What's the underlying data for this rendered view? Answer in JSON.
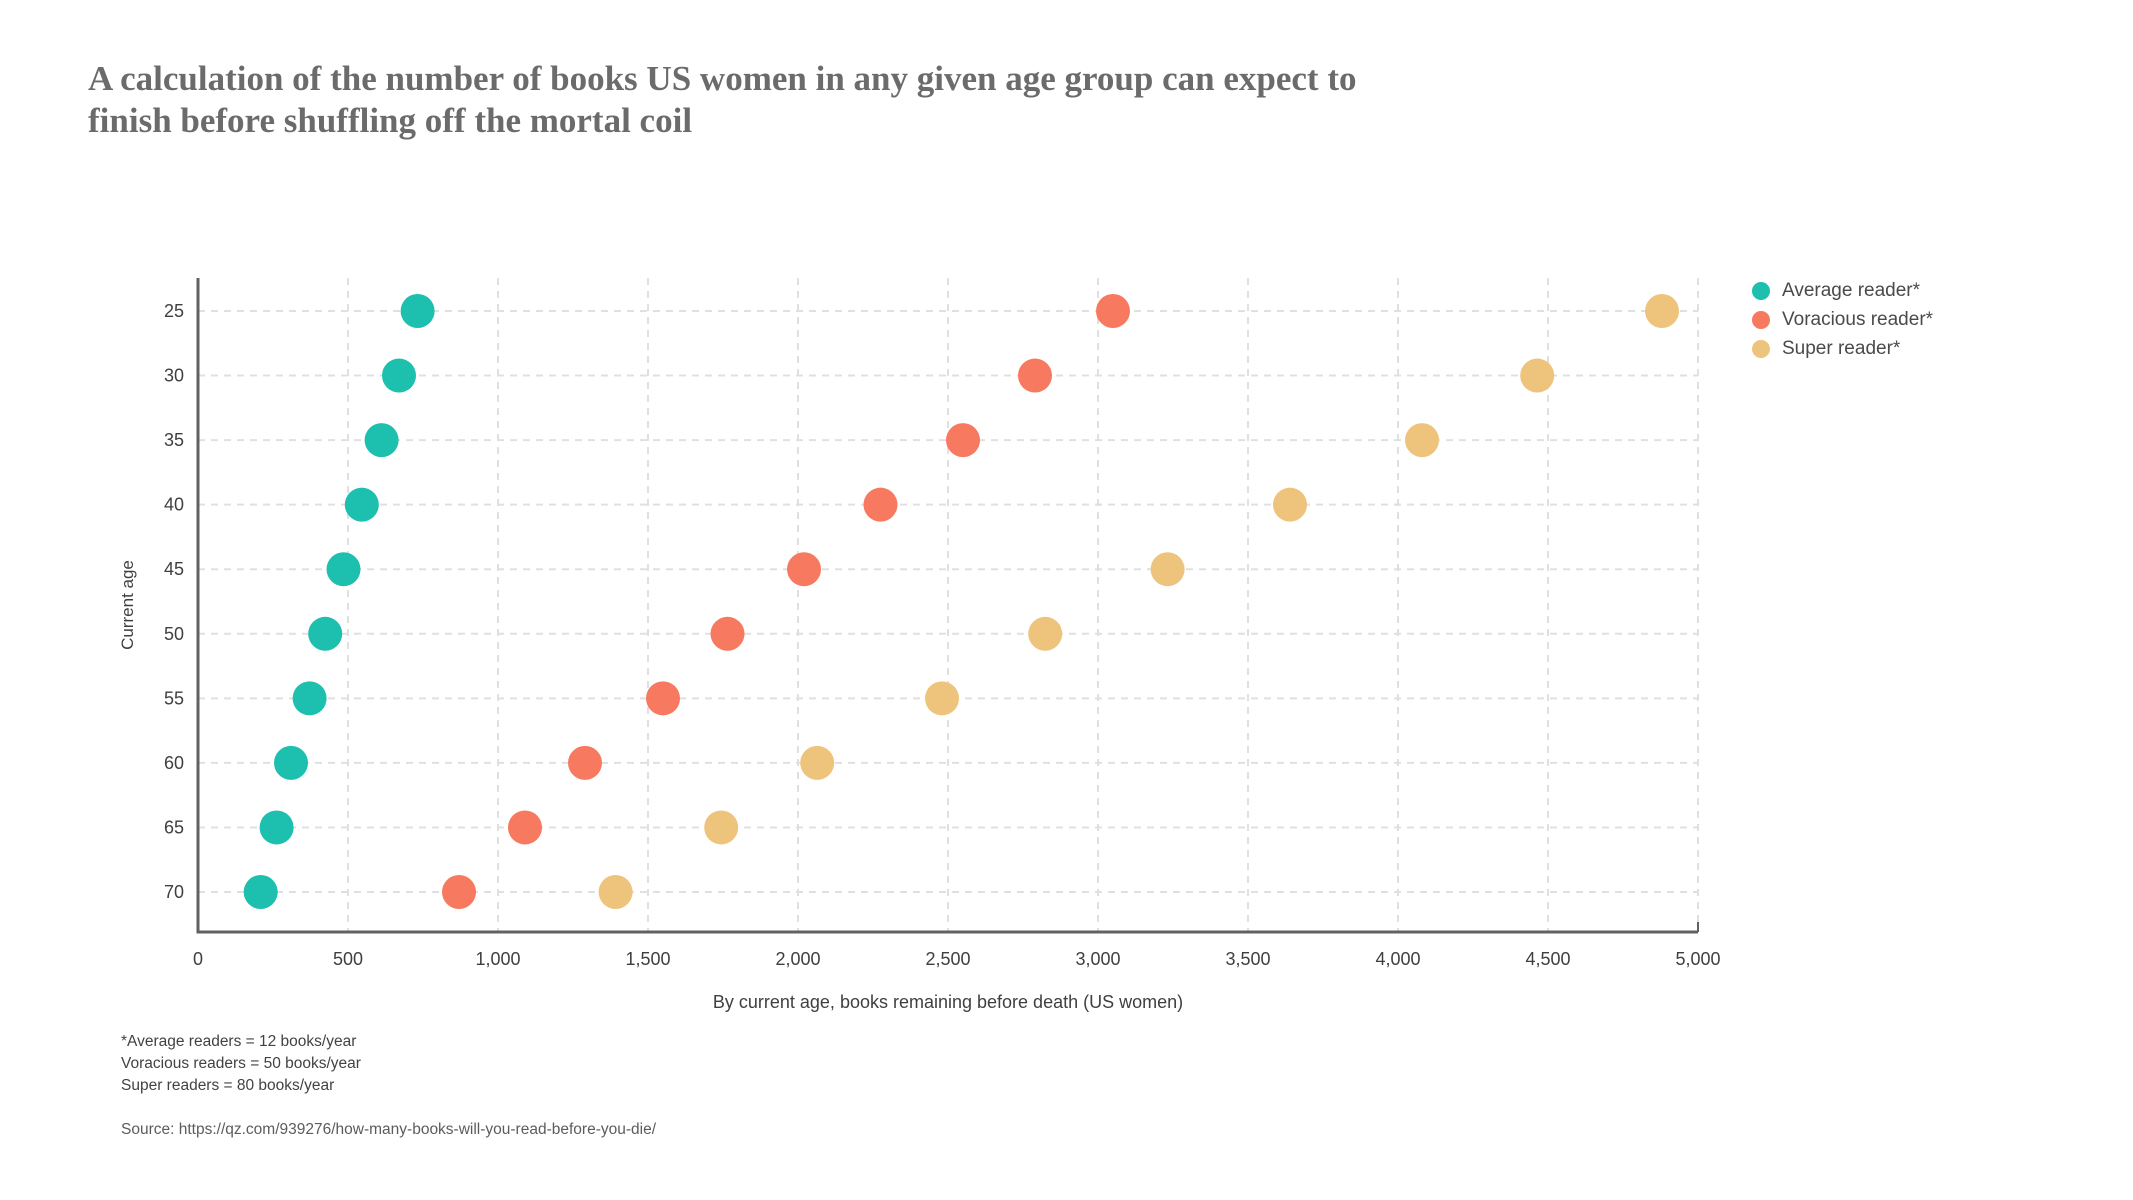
{
  "title": "A calculation of the number of books US women in any given age group can expect to finish before shuffling off the mortal coil",
  "legend": [
    {
      "label": "Average reader*",
      "color": "#1dbfae"
    },
    {
      "label": "Voracious reader*",
      "color": "#f7795f"
    },
    {
      "label": "Super reader*",
      "color": "#eec47c"
    }
  ],
  "chart_data": {
    "type": "scatter",
    "orientation": "horizontal-categories",
    "title": "A calculation of the number of books US women in any given age group can expect to finish before shuffling off the mortal coil",
    "xlabel": "By current age, books remaining before death (US women)",
    "ylabel": "Current age",
    "xlim": [
      0,
      5000
    ],
    "x_tick_values": [
      0,
      500,
      1000,
      1500,
      2000,
      2500,
      3000,
      3500,
      4000,
      4500,
      5000
    ],
    "x_tick_labels": [
      "0",
      "500",
      "1,000",
      "1,500",
      "2,000",
      "2,500",
      "3,000",
      "3,500",
      "4,000",
      "4,500",
      "5,000"
    ],
    "y_categories": [
      "25",
      "30",
      "35",
      "40",
      "45",
      "50",
      "55",
      "60",
      "65",
      "70"
    ],
    "grid": true,
    "grid_style": "dashed",
    "legend_position": "top-right",
    "series": [
      {
        "name": "Average reader*",
        "color": "#1dbfae",
        "values": [
          732,
          670,
          612,
          546,
          485,
          424,
          372,
          310,
          262,
          209
        ]
      },
      {
        "name": "Voracious reader*",
        "color": "#f7795f",
        "values": [
          3050,
          2790,
          2550,
          2275,
          2020,
          1765,
          1550,
          1290,
          1090,
          870
        ]
      },
      {
        "name": "Super reader*",
        "color": "#eec47c",
        "values": [
          4880,
          4464,
          4080,
          3640,
          3232,
          2824,
          2480,
          2064,
          1744,
          1392
        ]
      }
    ]
  },
  "footnotes": [
    "*Average readers = 12 books/year",
    "Voracious readers = 50 books/year",
    "Super readers = 80 books/year"
  ],
  "source": "Source: https://qz.com/939276/how-many-books-will-you-read-before-you-die/"
}
